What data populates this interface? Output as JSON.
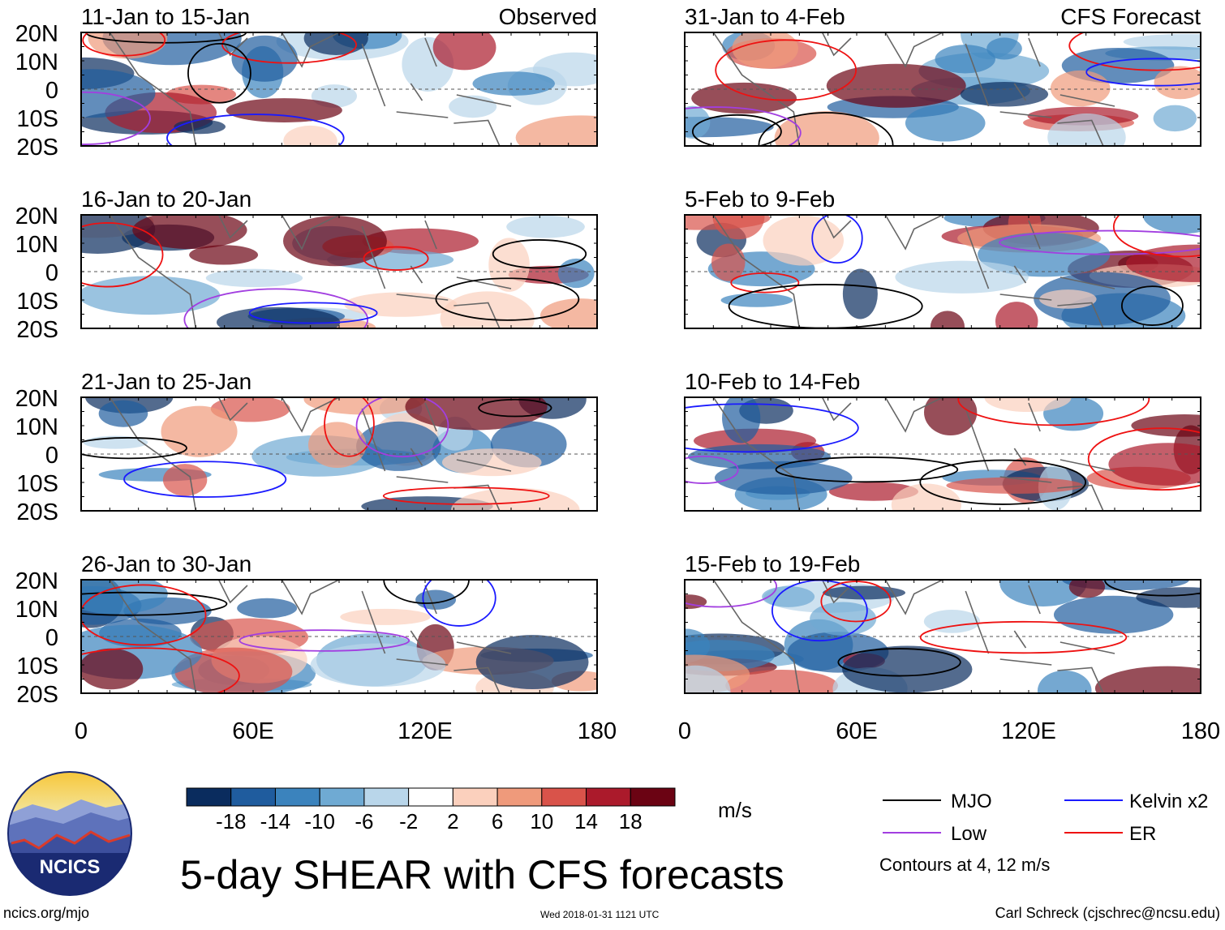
{
  "chart_data": {
    "type": "heatmap",
    "title": "5-day SHEAR with CFS forecasts",
    "x_axis": {
      "ticks": [
        "0",
        "60E",
        "120E",
        "180"
      ],
      "range": [
        0,
        180
      ]
    },
    "y_axis": {
      "ticks": [
        "20N",
        "10N",
        "0",
        "10S",
        "20S"
      ],
      "range": [
        -20,
        20
      ]
    },
    "left_column_label": "Observed",
    "right_column_label": "CFS Forecast",
    "panels": [
      {
        "title": "11-Jan to 15-Jan",
        "kind": "observed"
      },
      {
        "title": "16-Jan to 20-Jan",
        "kind": "observed"
      },
      {
        "title": "21-Jan to 25-Jan",
        "kind": "observed"
      },
      {
        "title": "26-Jan to 30-Jan",
        "kind": "observed"
      },
      {
        "title": "31-Jan to 4-Feb",
        "kind": "forecast"
      },
      {
        "title": "5-Feb to 9-Feb",
        "kind": "forecast"
      },
      {
        "title": "10-Feb to 14-Feb",
        "kind": "forecast"
      },
      {
        "title": "15-Feb to 19-Feb",
        "kind": "forecast"
      }
    ],
    "colorbar": {
      "unit": "m/s",
      "levels": [
        "-18",
        "-14",
        "-10",
        "-6",
        "-2",
        "2",
        "6",
        "10",
        "14",
        "18"
      ],
      "colors": [
        "#0a2c5e",
        "#1f5c9e",
        "#3b83bd",
        "#6faad3",
        "#b9d6ea",
        "#ffffff",
        "#fbd0bd",
        "#ef9a7b",
        "#d9534a",
        "#ab1a2b",
        "#6b0313"
      ]
    },
    "legend": [
      {
        "label": "MJO",
        "color": "#000000"
      },
      {
        "label": "Kelvin x2",
        "color": "#1a1aff"
      },
      {
        "label": "Low",
        "color": "#a23ee0"
      },
      {
        "label": "ER",
        "color": "#ee1111"
      }
    ],
    "contour_note": "Contours at 4, 12 m/s"
  },
  "footer": {
    "logo_text": "NCICS",
    "website": "ncics.org/mjo",
    "timestamp": "Wed 2018-01-31 1121 UTC",
    "credit": "Carl Schreck (cjschrec@ncsu.edu)"
  }
}
